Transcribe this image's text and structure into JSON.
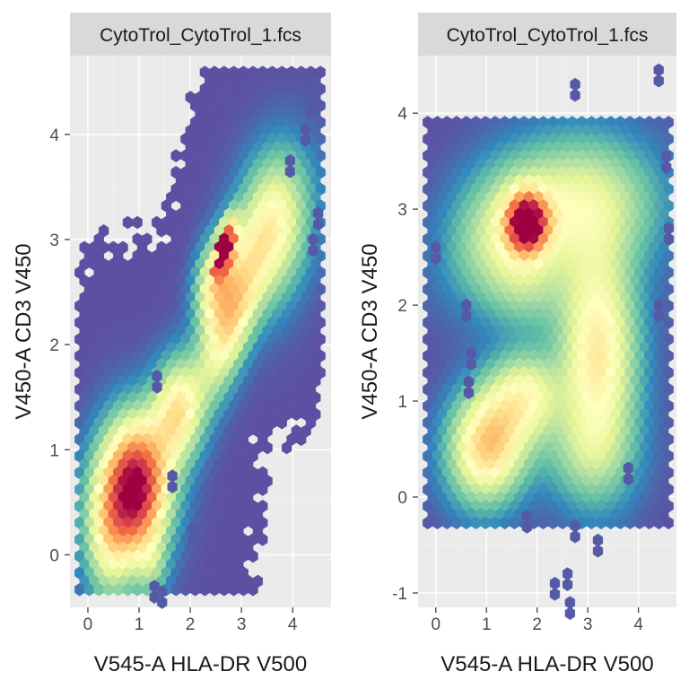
{
  "chart_data": [
    {
      "type": "heatmap",
      "subtype": "hexbin",
      "facet_label": "CytoTrol_CytoTrol_1.fcs",
      "xlabel": "V545-A HLA-DR V500",
      "ylabel": "V450-A CD3 V450",
      "xlim": [
        -0.35,
        4.75
      ],
      "ylim": [
        -0.5,
        4.75
      ],
      "xticks": [
        0,
        1,
        2,
        3,
        4
      ],
      "yticks": [
        0,
        1,
        2,
        3,
        4
      ],
      "colormap": [
        "#5e4fa2",
        "#3288bd",
        "#66c2a5",
        "#abdda4",
        "#e6f598",
        "#ffffbf",
        "#fee08b",
        "#fdae61",
        "#f46d43",
        "#d53e4f",
        "#9e0142"
      ],
      "grid": true,
      "clusters": [
        {
          "x": 0.95,
          "y": 0.65,
          "sx": 0.42,
          "sy": 0.4,
          "rot": 30,
          "w": 1.0,
          "region": 1.0
        },
        {
          "x": 0.55,
          "y": 0.35,
          "sx": 0.4,
          "sy": 0.45,
          "rot": 0,
          "w": 0.3,
          "region": 0.55
        },
        {
          "x": 1.75,
          "y": 1.35,
          "sx": 0.35,
          "sy": 0.3,
          "rot": 45,
          "w": 0.5,
          "region": 0.8
        },
        {
          "x": 2.8,
          "y": 2.25,
          "sx": 0.55,
          "sy": 0.25,
          "rot": 52,
          "w": 0.55,
          "region": 0.75
        },
        {
          "x": 2.5,
          "y": 2.6,
          "sx": 0.3,
          "sy": 0.22,
          "rot": 55,
          "w": 0.45,
          "region": 0.6
        },
        {
          "x": 3.6,
          "y": 3.1,
          "sx": 0.5,
          "sy": 0.4,
          "rot": 45,
          "w": 0.45,
          "region": 0.8
        },
        {
          "x": 2.72,
          "y": 2.95,
          "sx": 0.18,
          "sy": 0.1,
          "rot": 60,
          "w": 0.9,
          "region": 0.5
        },
        {
          "x": 2.55,
          "y": 2.75,
          "sx": 0.08,
          "sy": 0.05,
          "rot": 60,
          "w": 0.6,
          "region": 0.2
        },
        {
          "x": 2.6,
          "y": 2.95,
          "sx": 0.05,
          "sy": 0.05,
          "rot": 60,
          "w": 0.8,
          "region": 0.15
        },
        {
          "x": 0.35,
          "y": 0.1,
          "sx": 0.25,
          "sy": 0.35,
          "rot": 0,
          "w": 0.15,
          "region": 0.6
        },
        {
          "x": 1.25,
          "y": -0.1,
          "sx": 0.2,
          "sy": 0.2,
          "rot": 0,
          "w": 0.15,
          "region": 0.55
        }
      ],
      "outliers": [
        [
          4.45,
          4.5
        ],
        [
          4.35,
          4.3
        ],
        [
          4.25,
          4.05
        ],
        [
          3.95,
          3.75
        ],
        [
          1.65,
          0.75
        ],
        [
          1.3,
          -0.3
        ],
        [
          1.45,
          -0.35
        ],
        [
          2.05,
          0.25
        ],
        [
          1.35,
          1.7
        ],
        [
          4.4,
          3.0
        ],
        [
          4.5,
          3.25
        ]
      ],
      "bounds": {
        "xmin": -0.2,
        "xmax": 4.55,
        "ymin": -0.4,
        "ymax": 4.6
      }
    },
    {
      "type": "heatmap",
      "subtype": "hexbin",
      "facet_label": "CytoTrol_CytoTrol_1.fcs",
      "xlabel": "V545-A HLA-DR V500",
      "ylabel": "V450-A CD3 V450",
      "xlim": [
        -0.35,
        4.75
      ],
      "ylim": [
        -1.15,
        4.6
      ],
      "xticks": [
        0,
        1,
        2,
        3,
        4
      ],
      "yticks": [
        -1,
        0,
        1,
        2,
        3,
        4
      ],
      "colormap": [
        "#5e4fa2",
        "#3288bd",
        "#66c2a5",
        "#abdda4",
        "#e6f598",
        "#ffffbf",
        "#fee08b",
        "#fdae61",
        "#f46d43",
        "#d53e4f",
        "#9e0142"
      ],
      "grid": true,
      "clusters": [
        {
          "x": 1.8,
          "y": 2.85,
          "sx": 0.26,
          "sy": 0.2,
          "rot": 0,
          "w": 1.0,
          "region": 0.85
        },
        {
          "x": 1.5,
          "y": 2.75,
          "sx": 0.75,
          "sy": 0.45,
          "rot": 10,
          "w": 0.35,
          "region": 1.0
        },
        {
          "x": 3.0,
          "y": 3.05,
          "sx": 0.9,
          "sy": 0.45,
          "rot": 0,
          "w": 0.3,
          "region": 1.0
        },
        {
          "x": 3.2,
          "y": 1.5,
          "sx": 0.5,
          "sy": 0.75,
          "rot": 0,
          "w": 0.5,
          "region": 1.0
        },
        {
          "x": 1.05,
          "y": 0.55,
          "sx": 0.5,
          "sy": 0.38,
          "rot": 10,
          "w": 0.6,
          "region": 1.0
        },
        {
          "x": 1.8,
          "y": 1.05,
          "sx": 0.45,
          "sy": 0.3,
          "rot": 0,
          "w": 0.35,
          "region": 0.85
        },
        {
          "x": 3.0,
          "y": 0.45,
          "sx": 0.6,
          "sy": 0.35,
          "rot": 0,
          "w": 0.15,
          "region": 0.85
        },
        {
          "x": 1.85,
          "y": 2.15,
          "sx": 0.5,
          "sy": 0.3,
          "rot": 0,
          "w": 0.12,
          "region": 0.9
        }
      ],
      "outliers": [
        [
          0.0,
          2.6
        ],
        [
          2.75,
          4.3
        ],
        [
          4.4,
          4.45
        ],
        [
          0.6,
          2.0
        ],
        [
          0.7,
          1.5
        ],
        [
          0.65,
          1.2
        ],
        [
          2.75,
          -0.3
        ],
        [
          3.2,
          -0.45
        ],
        [
          2.6,
          -0.8
        ],
        [
          2.35,
          -0.9
        ],
        [
          2.65,
          -1.1
        ],
        [
          3.8,
          0.3
        ],
        [
          4.55,
          3.55
        ],
        [
          4.6,
          2.8
        ],
        [
          4.4,
          2.0
        ],
        [
          1.8,
          -0.2
        ]
      ],
      "bounds": {
        "xmin": -0.2,
        "xmax": 4.65,
        "ymin": -0.3,
        "ymax": 3.95
      }
    }
  ]
}
